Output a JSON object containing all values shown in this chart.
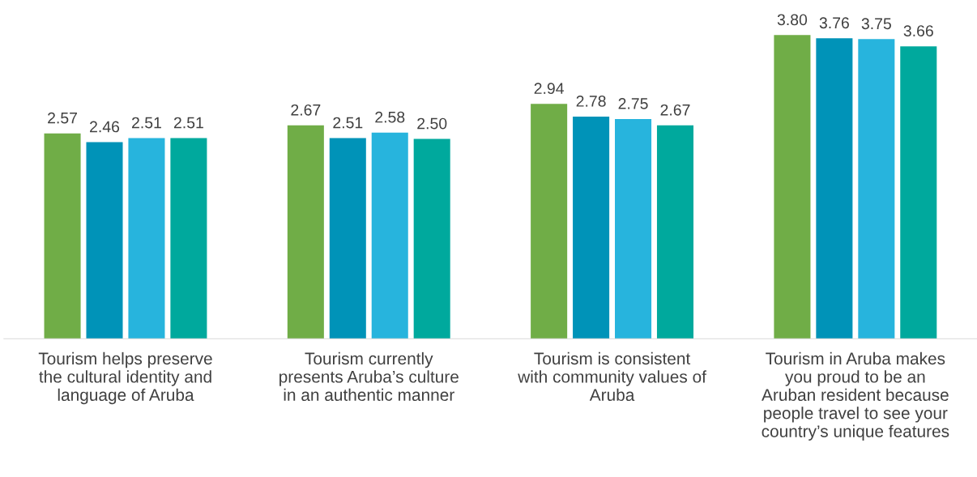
{
  "chart_data": {
    "type": "bar",
    "categories": [
      "Tourism helps preserve\nthe cultural identity and\nlanguage of Aruba",
      "Tourism currently\npresents Aruba’s culture\nin an authentic manner",
      "Tourism is consistent\nwith community values of\nAruba",
      "Tourism in Aruba makes\nyou proud to be an\nAruban resident because\npeople travel to see your\ncountry’s unique features"
    ],
    "series": [
      {
        "color": "#70ad47",
        "values": [
          2.57,
          2.67,
          2.94,
          3.8
        ],
        "value_labels": [
          "2.57",
          "2.67",
          "2.94",
          "3.80"
        ]
      },
      {
        "color": "#0093b8",
        "values": [
          2.46,
          2.51,
          2.78,
          3.76
        ],
        "value_labels": [
          "2.46",
          "2.51",
          "2.78",
          "3.76"
        ]
      },
      {
        "color": "#27b4dd",
        "values": [
          2.51,
          2.58,
          2.75,
          3.75
        ],
        "value_labels": [
          "2.51",
          "2.58",
          "2.75",
          "3.75"
        ]
      },
      {
        "color": "#00a99d",
        "values": [
          2.51,
          2.5,
          2.67,
          3.66
        ],
        "value_labels": [
          "2.51",
          "2.50",
          "2.67",
          "3.66"
        ]
      }
    ],
    "grid": false,
    "legend": false
  }
}
